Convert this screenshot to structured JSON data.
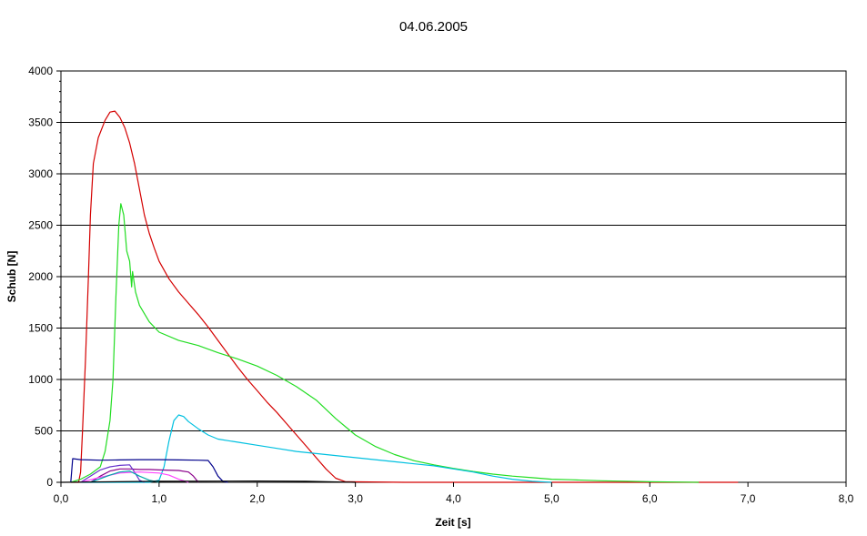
{
  "chart_data": {
    "type": "line",
    "title": "04.06.2005",
    "xlabel": "Zeit [s]",
    "ylabel": "Schub [N]",
    "xlim": [
      0,
      8
    ],
    "ylim": [
      0,
      4000
    ],
    "xticks": [
      "0,0",
      "1,0",
      "2,0",
      "3,0",
      "4,0",
      "5,0",
      "6,0",
      "7,0",
      "8,0"
    ],
    "yticks": [
      "0",
      "500",
      "1000",
      "1500",
      "2000",
      "2500",
      "3000",
      "3500",
      "4000"
    ],
    "grid": "horizontal",
    "legend": "none",
    "series": [
      {
        "color": "#d40000",
        "points": [
          [
            0.1,
            0
          ],
          [
            0.18,
            0
          ],
          [
            0.2,
            100
          ],
          [
            0.22,
            500
          ],
          [
            0.25,
            1200
          ],
          [
            0.28,
            2000
          ],
          [
            0.3,
            2600
          ],
          [
            0.33,
            3100
          ],
          [
            0.38,
            3350
          ],
          [
            0.45,
            3520
          ],
          [
            0.5,
            3600
          ],
          [
            0.55,
            3610
          ],
          [
            0.6,
            3550
          ],
          [
            0.65,
            3450
          ],
          [
            0.7,
            3300
          ],
          [
            0.75,
            3100
          ],
          [
            0.8,
            2850
          ],
          [
            0.85,
            2600
          ],
          [
            0.9,
            2420
          ],
          [
            0.95,
            2280
          ],
          [
            1.0,
            2150
          ],
          [
            1.1,
            1980
          ],
          [
            1.2,
            1850
          ],
          [
            1.3,
            1740
          ],
          [
            1.4,
            1630
          ],
          [
            1.5,
            1510
          ],
          [
            1.6,
            1380
          ],
          [
            1.7,
            1250
          ],
          [
            1.8,
            1120
          ],
          [
            1.9,
            1000
          ],
          [
            2.0,
            890
          ],
          [
            2.1,
            780
          ],
          [
            2.2,
            680
          ],
          [
            2.3,
            570
          ],
          [
            2.4,
            460
          ],
          [
            2.5,
            350
          ],
          [
            2.6,
            240
          ],
          [
            2.7,
            130
          ],
          [
            2.8,
            40
          ],
          [
            2.9,
            5
          ],
          [
            3.5,
            0
          ],
          [
            6.9,
            0
          ]
        ]
      },
      {
        "color": "#22dd22",
        "points": [
          [
            0.1,
            0
          ],
          [
            0.2,
            30
          ],
          [
            0.3,
            80
          ],
          [
            0.4,
            150
          ],
          [
            0.45,
            300
          ],
          [
            0.5,
            600
          ],
          [
            0.53,
            1000
          ],
          [
            0.56,
            1800
          ],
          [
            0.59,
            2500
          ],
          [
            0.61,
            2710
          ],
          [
            0.64,
            2600
          ],
          [
            0.67,
            2250
          ],
          [
            0.7,
            2150
          ],
          [
            0.72,
            1900
          ],
          [
            0.73,
            2050
          ],
          [
            0.76,
            1850
          ],
          [
            0.8,
            1720
          ],
          [
            0.9,
            1560
          ],
          [
            1.0,
            1460
          ],
          [
            1.2,
            1380
          ],
          [
            1.4,
            1330
          ],
          [
            1.6,
            1260
          ],
          [
            1.8,
            1200
          ],
          [
            2.0,
            1130
          ],
          [
            2.2,
            1040
          ],
          [
            2.4,
            930
          ],
          [
            2.6,
            800
          ],
          [
            2.8,
            620
          ],
          [
            3.0,
            460
          ],
          [
            3.2,
            350
          ],
          [
            3.4,
            270
          ],
          [
            3.6,
            210
          ],
          [
            3.8,
            170
          ],
          [
            4.0,
            135
          ],
          [
            4.2,
            105
          ],
          [
            4.4,
            80
          ],
          [
            4.6,
            60
          ],
          [
            4.8,
            45
          ],
          [
            5.0,
            30
          ],
          [
            5.2,
            25
          ],
          [
            5.5,
            15
          ],
          [
            6.0,
            5
          ],
          [
            6.5,
            0
          ]
        ]
      },
      {
        "color": "#00c0e0",
        "points": [
          [
            0.2,
            0
          ],
          [
            0.6,
            0
          ],
          [
            0.9,
            0
          ],
          [
            1.0,
            20
          ],
          [
            1.05,
            150
          ],
          [
            1.1,
            400
          ],
          [
            1.15,
            600
          ],
          [
            1.2,
            655
          ],
          [
            1.25,
            640
          ],
          [
            1.3,
            590
          ],
          [
            1.4,
            520
          ],
          [
            1.5,
            460
          ],
          [
            1.6,
            420
          ],
          [
            1.8,
            390
          ],
          [
            2.0,
            360
          ],
          [
            2.2,
            330
          ],
          [
            2.4,
            300
          ],
          [
            2.6,
            280
          ],
          [
            2.8,
            260
          ],
          [
            3.0,
            240
          ],
          [
            3.2,
            220
          ],
          [
            3.4,
            200
          ],
          [
            3.6,
            180
          ],
          [
            3.8,
            160
          ],
          [
            4.0,
            130
          ],
          [
            4.2,
            100
          ],
          [
            4.4,
            60
          ],
          [
            4.6,
            30
          ],
          [
            4.8,
            10
          ],
          [
            5.0,
            0
          ]
        ]
      },
      {
        "color": "#00008b",
        "points": [
          [
            0.1,
            0
          ],
          [
            0.12,
            230
          ],
          [
            0.2,
            220
          ],
          [
            0.4,
            215
          ],
          [
            0.6,
            218
          ],
          [
            0.8,
            220
          ],
          [
            1.0,
            220
          ],
          [
            1.2,
            218
          ],
          [
            1.4,
            215
          ],
          [
            1.5,
            212
          ],
          [
            1.55,
            150
          ],
          [
            1.6,
            60
          ],
          [
            1.65,
            10
          ],
          [
            1.7,
            0
          ]
        ]
      },
      {
        "color": "#8b008b",
        "points": [
          [
            0.3,
            0
          ],
          [
            0.4,
            60
          ],
          [
            0.5,
            110
          ],
          [
            0.6,
            130
          ],
          [
            0.7,
            130
          ],
          [
            0.8,
            125
          ],
          [
            0.9,
            125
          ],
          [
            1.0,
            120
          ],
          [
            1.2,
            115
          ],
          [
            1.3,
            100
          ],
          [
            1.35,
            60
          ],
          [
            1.4,
            0
          ]
        ]
      },
      {
        "color": "#6633cc",
        "points": [
          [
            0.2,
            0
          ],
          [
            0.3,
            60
          ],
          [
            0.4,
            120
          ],
          [
            0.5,
            150
          ],
          [
            0.6,
            165
          ],
          [
            0.7,
            170
          ],
          [
            0.75,
            100
          ],
          [
            0.8,
            20
          ],
          [
            0.85,
            0
          ]
        ]
      },
      {
        "color": "#ff44ff",
        "points": [
          [
            0.2,
            0
          ],
          [
            0.4,
            50
          ],
          [
            0.6,
            90
          ],
          [
            0.8,
            100
          ],
          [
            1.0,
            90
          ],
          [
            1.1,
            70
          ],
          [
            1.2,
            30
          ],
          [
            1.3,
            0
          ]
        ]
      },
      {
        "color": "#00aaaa",
        "points": [
          [
            0.3,
            0
          ],
          [
            0.5,
            70
          ],
          [
            0.6,
            100
          ],
          [
            0.7,
            110
          ],
          [
            0.8,
            60
          ],
          [
            0.9,
            20
          ],
          [
            1.0,
            0
          ]
        ]
      },
      {
        "color": "#000000",
        "points": [
          [
            0.0,
            0
          ],
          [
            1.0,
            10
          ],
          [
            2.0,
            12
          ],
          [
            2.5,
            10
          ],
          [
            3.0,
            0
          ]
        ]
      }
    ]
  }
}
